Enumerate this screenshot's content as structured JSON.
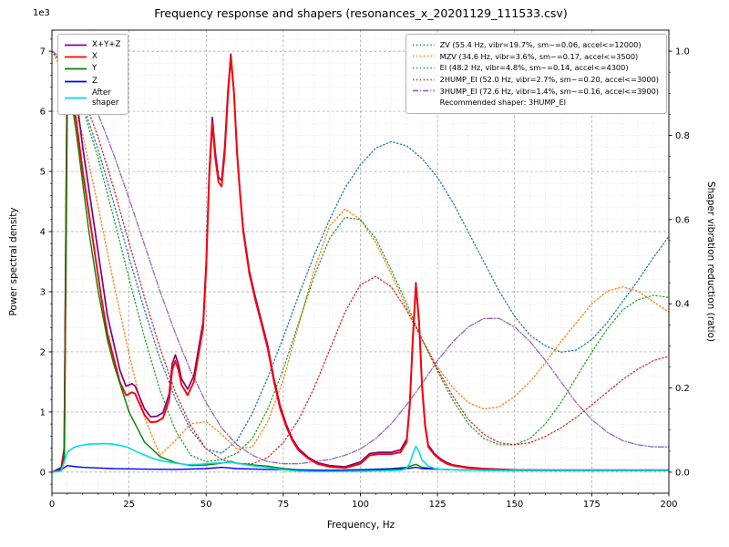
{
  "chart_data": {
    "type": "line",
    "title": "Frequency response and shapers (resonances_x_20201129_111533.csv)",
    "xlabel": "Frequency, Hz",
    "ylabel": "Power spectral density",
    "ylabel_right": "Shaper vibration reduction (ratio)",
    "offset_text": "1e3",
    "grid": true,
    "legend_position_psd": "upper left",
    "legend_position_shapers": "upper right",
    "xlim": [
      -0.05,
      200
    ],
    "ylim_left": [
      -350,
      7350
    ],
    "ylim_right": [
      -0.05,
      1.05
    ],
    "x_ticks": [
      0,
      25,
      50,
      75,
      100,
      125,
      150,
      175,
      200
    ],
    "y_ticks_left": [
      0,
      1000,
      2000,
      3000,
      4000,
      5000,
      6000,
      7000
    ],
    "y_tick_left_labels": [
      "0",
      "1",
      "2",
      "3",
      "4",
      "5",
      "6",
      "7"
    ],
    "y_ticks_right": [
      0.0,
      0.2,
      0.4,
      0.6,
      0.8,
      1.0
    ],
    "psd_series": [
      {
        "name": "X+Y+Z",
        "color": "#800080",
        "style": "solid",
        "width": 1.7,
        "x": [
          0,
          3,
          4,
          5,
          6,
          8,
          10,
          12,
          14,
          16,
          18,
          20,
          22,
          24,
          25,
          26,
          27,
          28,
          30,
          32,
          34,
          36,
          38,
          39,
          40,
          41,
          42,
          44,
          46,
          48,
          49,
          50,
          51,
          52,
          53,
          54,
          55,
          56,
          57,
          58,
          59,
          60,
          61,
          62,
          64,
          66,
          68,
          70,
          72,
          74,
          76,
          78,
          80,
          83,
          86,
          90,
          95,
          100,
          103,
          106,
          110,
          113,
          115,
          116,
          117,
          118,
          119,
          120,
          121,
          122,
          124,
          126,
          128,
          130,
          135,
          140,
          150,
          160,
          170,
          180,
          190,
          200
        ],
        "y": [
          0,
          80,
          400,
          7200,
          6900,
          6200,
          5400,
          4700,
          4000,
          3300,
          2600,
          2150,
          1700,
          1430,
          1450,
          1470,
          1430,
          1300,
          1050,
          920,
          930,
          990,
          1300,
          1800,
          1950,
          1800,
          1550,
          1380,
          1600,
          2200,
          2500,
          3500,
          5000,
          5900,
          5300,
          4900,
          4850,
          5400,
          6300,
          6950,
          6350,
          5350,
          4650,
          4050,
          3350,
          2900,
          2500,
          2100,
          1550,
          1100,
          790,
          550,
          390,
          250,
          160,
          110,
          90,
          170,
          310,
          330,
          330,
          370,
          550,
          1150,
          2250,
          3150,
          2550,
          1450,
          790,
          450,
          310,
          220,
          160,
          120,
          80,
          60,
          40,
          35,
          35,
          35,
          35,
          35
        ]
      },
      {
        "name": "X",
        "color": "#ff0000",
        "style": "solid",
        "width": 1.9,
        "x": [
          0,
          3,
          4,
          5,
          6,
          8,
          10,
          12,
          14,
          16,
          18,
          20,
          22,
          24,
          25,
          26,
          27,
          28,
          30,
          32,
          34,
          36,
          38,
          39,
          40,
          41,
          42,
          44,
          46,
          48,
          49,
          50,
          51,
          52,
          53,
          54,
          55,
          56,
          57,
          58,
          59,
          60,
          61,
          62,
          64,
          66,
          68,
          70,
          72,
          74,
          76,
          78,
          80,
          83,
          86,
          90,
          95,
          100,
          103,
          106,
          110,
          113,
          115,
          116,
          117,
          118,
          119,
          120,
          121,
          122,
          124,
          126,
          128,
          130,
          135,
          140,
          150,
          160,
          170,
          180,
          190,
          200
        ],
        "y": [
          0,
          60,
          300,
          6600,
          6400,
          5800,
          5000,
          4300,
          3600,
          2900,
          2300,
          1900,
          1500,
          1280,
          1300,
          1330,
          1300,
          1180,
          950,
          830,
          840,
          900,
          1200,
          1700,
          1850,
          1700,
          1450,
          1280,
          1500,
          2100,
          2400,
          3400,
          4900,
          5800,
          5200,
          4820,
          4750,
          5300,
          6200,
          6900,
          6300,
          5300,
          4600,
          4000,
          3300,
          2850,
          2450,
          2050,
          1500,
          1050,
          750,
          520,
          360,
          230,
          140,
          90,
          70,
          140,
          280,
          300,
          300,
          330,
          500,
          1100,
          2200,
          3100,
          2500,
          1400,
          750,
          420,
          290,
          200,
          140,
          110,
          70,
          50,
          35,
          30,
          30,
          30,
          30,
          30
        ]
      },
      {
        "name": "Y",
        "color": "#008000",
        "style": "solid",
        "width": 1.4,
        "x": [
          0,
          3,
          4,
          5,
          6,
          8,
          10,
          12,
          15,
          18,
          20,
          25,
          30,
          35,
          40,
          45,
          50,
          55,
          58,
          60,
          65,
          70,
          75,
          80,
          90,
          100,
          110,
          115,
          118,
          120,
          125,
          130,
          140,
          150,
          160,
          180,
          200
        ],
        "y": [
          0,
          50,
          200,
          6500,
          6300,
          5600,
          4800,
          4000,
          3000,
          2200,
          1800,
          1000,
          500,
          260,
          160,
          110,
          120,
          150,
          180,
          150,
          120,
          100,
          60,
          40,
          30,
          40,
          60,
          80,
          130,
          80,
          50,
          40,
          30,
          25,
          25,
          25,
          25
        ]
      },
      {
        "name": "Z",
        "color": "#0000ff",
        "style": "solid",
        "width": 1.4,
        "x": [
          0,
          3,
          5,
          8,
          10,
          15,
          20,
          25,
          30,
          40,
          50,
          55,
          60,
          70,
          80,
          90,
          100,
          110,
          115,
          118,
          120,
          130,
          150,
          170,
          200
        ],
        "y": [
          0,
          40,
          110,
          90,
          80,
          70,
          60,
          55,
          50,
          45,
          60,
          80,
          60,
          45,
          35,
          30,
          40,
          50,
          60,
          80,
          60,
          40,
          30,
          30,
          30
        ]
      },
      {
        "name": "After\nshaper",
        "color": "#00dddd",
        "style": "solid",
        "width": 1.6,
        "x": [
          0,
          3,
          5,
          7,
          9,
          11,
          13,
          15,
          17,
          19,
          21,
          23,
          25,
          27,
          30,
          33,
          36,
          40,
          44,
          48,
          50,
          52,
          54,
          56,
          58,
          60,
          63,
          66,
          70,
          75,
          80,
          85,
          90,
          95,
          100,
          105,
          110,
          113,
          115,
          116,
          117,
          118,
          119,
          120,
          122,
          124,
          126,
          130,
          140,
          150,
          160,
          170,
          180,
          190,
          200
        ],
        "y": [
          0,
          20,
          330,
          410,
          440,
          460,
          470,
          470,
          475,
          470,
          455,
          435,
          405,
          350,
          285,
          225,
          185,
          150,
          125,
          130,
          140,
          148,
          150,
          158,
          168,
          150,
          122,
          100,
          78,
          40,
          18,
          10,
          10,
          12,
          16,
          22,
          26,
          32,
          60,
          150,
          300,
          430,
          340,
          200,
          100,
          62,
          50,
          40,
          30,
          30,
          30,
          30,
          30,
          30,
          30
        ]
      }
    ],
    "shaper_x": [
      0,
      5,
      10,
      15,
      20,
      25,
      30,
      35,
      40,
      45,
      50,
      55,
      60,
      65,
      70,
      75,
      80,
      85,
      90,
      95,
      100,
      105,
      110,
      115,
      120,
      125,
      130,
      135,
      140,
      145,
      150,
      155,
      160,
      165,
      170,
      175,
      180,
      185,
      190,
      195,
      200
    ],
    "shaper_series": [
      {
        "name": "ZV",
        "label": "ZV (55.4 Hz, vibr=19.7%, sm~=0.06, accel<=12000)",
        "color": "#1f77b4",
        "style": "dotted",
        "values": [
          1.0,
          0.955,
          0.875,
          0.765,
          0.64,
          0.51,
          0.385,
          0.27,
          0.175,
          0.1,
          0.055,
          0.045,
          0.075,
          0.14,
          0.225,
          0.32,
          0.42,
          0.515,
          0.6,
          0.675,
          0.73,
          0.77,
          0.785,
          0.775,
          0.745,
          0.7,
          0.64,
          0.57,
          0.5,
          0.43,
          0.37,
          0.325,
          0.3,
          0.285,
          0.29,
          0.315,
          0.355,
          0.405,
          0.455,
          0.51,
          0.56
        ]
      },
      {
        "name": "MZV",
        "label": "MZV (34.6 Hz, vibr=3.6%, sm~=0.17, accel<=3500)",
        "color": "#ff7f0e",
        "style": "dotted",
        "values": [
          1.0,
          0.93,
          0.8,
          0.63,
          0.45,
          0.28,
          0.13,
          0.04,
          0.075,
          0.115,
          0.12,
          0.09,
          0.055,
          0.06,
          0.12,
          0.22,
          0.35,
          0.48,
          0.585,
          0.625,
          0.6,
          0.545,
          0.47,
          0.39,
          0.315,
          0.25,
          0.2,
          0.165,
          0.15,
          0.155,
          0.18,
          0.215,
          0.26,
          0.31,
          0.355,
          0.4,
          0.43,
          0.44,
          0.43,
          0.405,
          0.38
        ]
      },
      {
        "name": "EI",
        "label": "EI (48.2 Hz, vibr=4.8%, sm~=0.14, accel<=4300)",
        "color": "#2ca02c",
        "style": "dotted",
        "values": [
          1.0,
          0.955,
          0.865,
          0.745,
          0.605,
          0.46,
          0.32,
          0.195,
          0.1,
          0.04,
          0.025,
          0.03,
          0.045,
          0.08,
          0.15,
          0.245,
          0.355,
          0.465,
          0.555,
          0.605,
          0.6,
          0.555,
          0.48,
          0.4,
          0.315,
          0.24,
          0.17,
          0.115,
          0.08,
          0.065,
          0.065,
          0.08,
          0.115,
          0.165,
          0.225,
          0.285,
          0.34,
          0.385,
          0.41,
          0.42,
          0.415
        ]
      },
      {
        "name": "2HUMP_EI",
        "label": "2HUMP_EI (52.0 Hz, vibr=2.7%, sm~=0.20, accel<=3000)",
        "color": "#d62728",
        "style": "dotted",
        "values": [
          1.0,
          0.965,
          0.895,
          0.795,
          0.675,
          0.545,
          0.415,
          0.295,
          0.19,
          0.11,
          0.055,
          0.03,
          0.02,
          0.02,
          0.035,
          0.07,
          0.125,
          0.2,
          0.29,
          0.38,
          0.445,
          0.465,
          0.44,
          0.385,
          0.315,
          0.245,
          0.18,
          0.125,
          0.09,
          0.07,
          0.065,
          0.07,
          0.085,
          0.105,
          0.13,
          0.16,
          0.19,
          0.22,
          0.245,
          0.265,
          0.275
        ]
      },
      {
        "name": "3HUMP_EI",
        "label": "3HUMP_EI (72.6 Hz, vibr=1.4%, sm~=0.16, accel<=3900)",
        "color": "#9467bd",
        "style": "dashdot",
        "values": [
          1.0,
          0.975,
          0.925,
          0.85,
          0.755,
          0.65,
          0.54,
          0.43,
          0.33,
          0.24,
          0.165,
          0.105,
          0.065,
          0.04,
          0.025,
          0.02,
          0.02,
          0.025,
          0.03,
          0.04,
          0.055,
          0.08,
          0.115,
          0.16,
          0.21,
          0.265,
          0.31,
          0.345,
          0.365,
          0.365,
          0.345,
          0.31,
          0.265,
          0.215,
          0.165,
          0.125,
          0.095,
          0.075,
          0.065,
          0.06,
          0.06
        ]
      }
    ],
    "legend_note": "Recommended shaper: 3HUMP_EI"
  }
}
